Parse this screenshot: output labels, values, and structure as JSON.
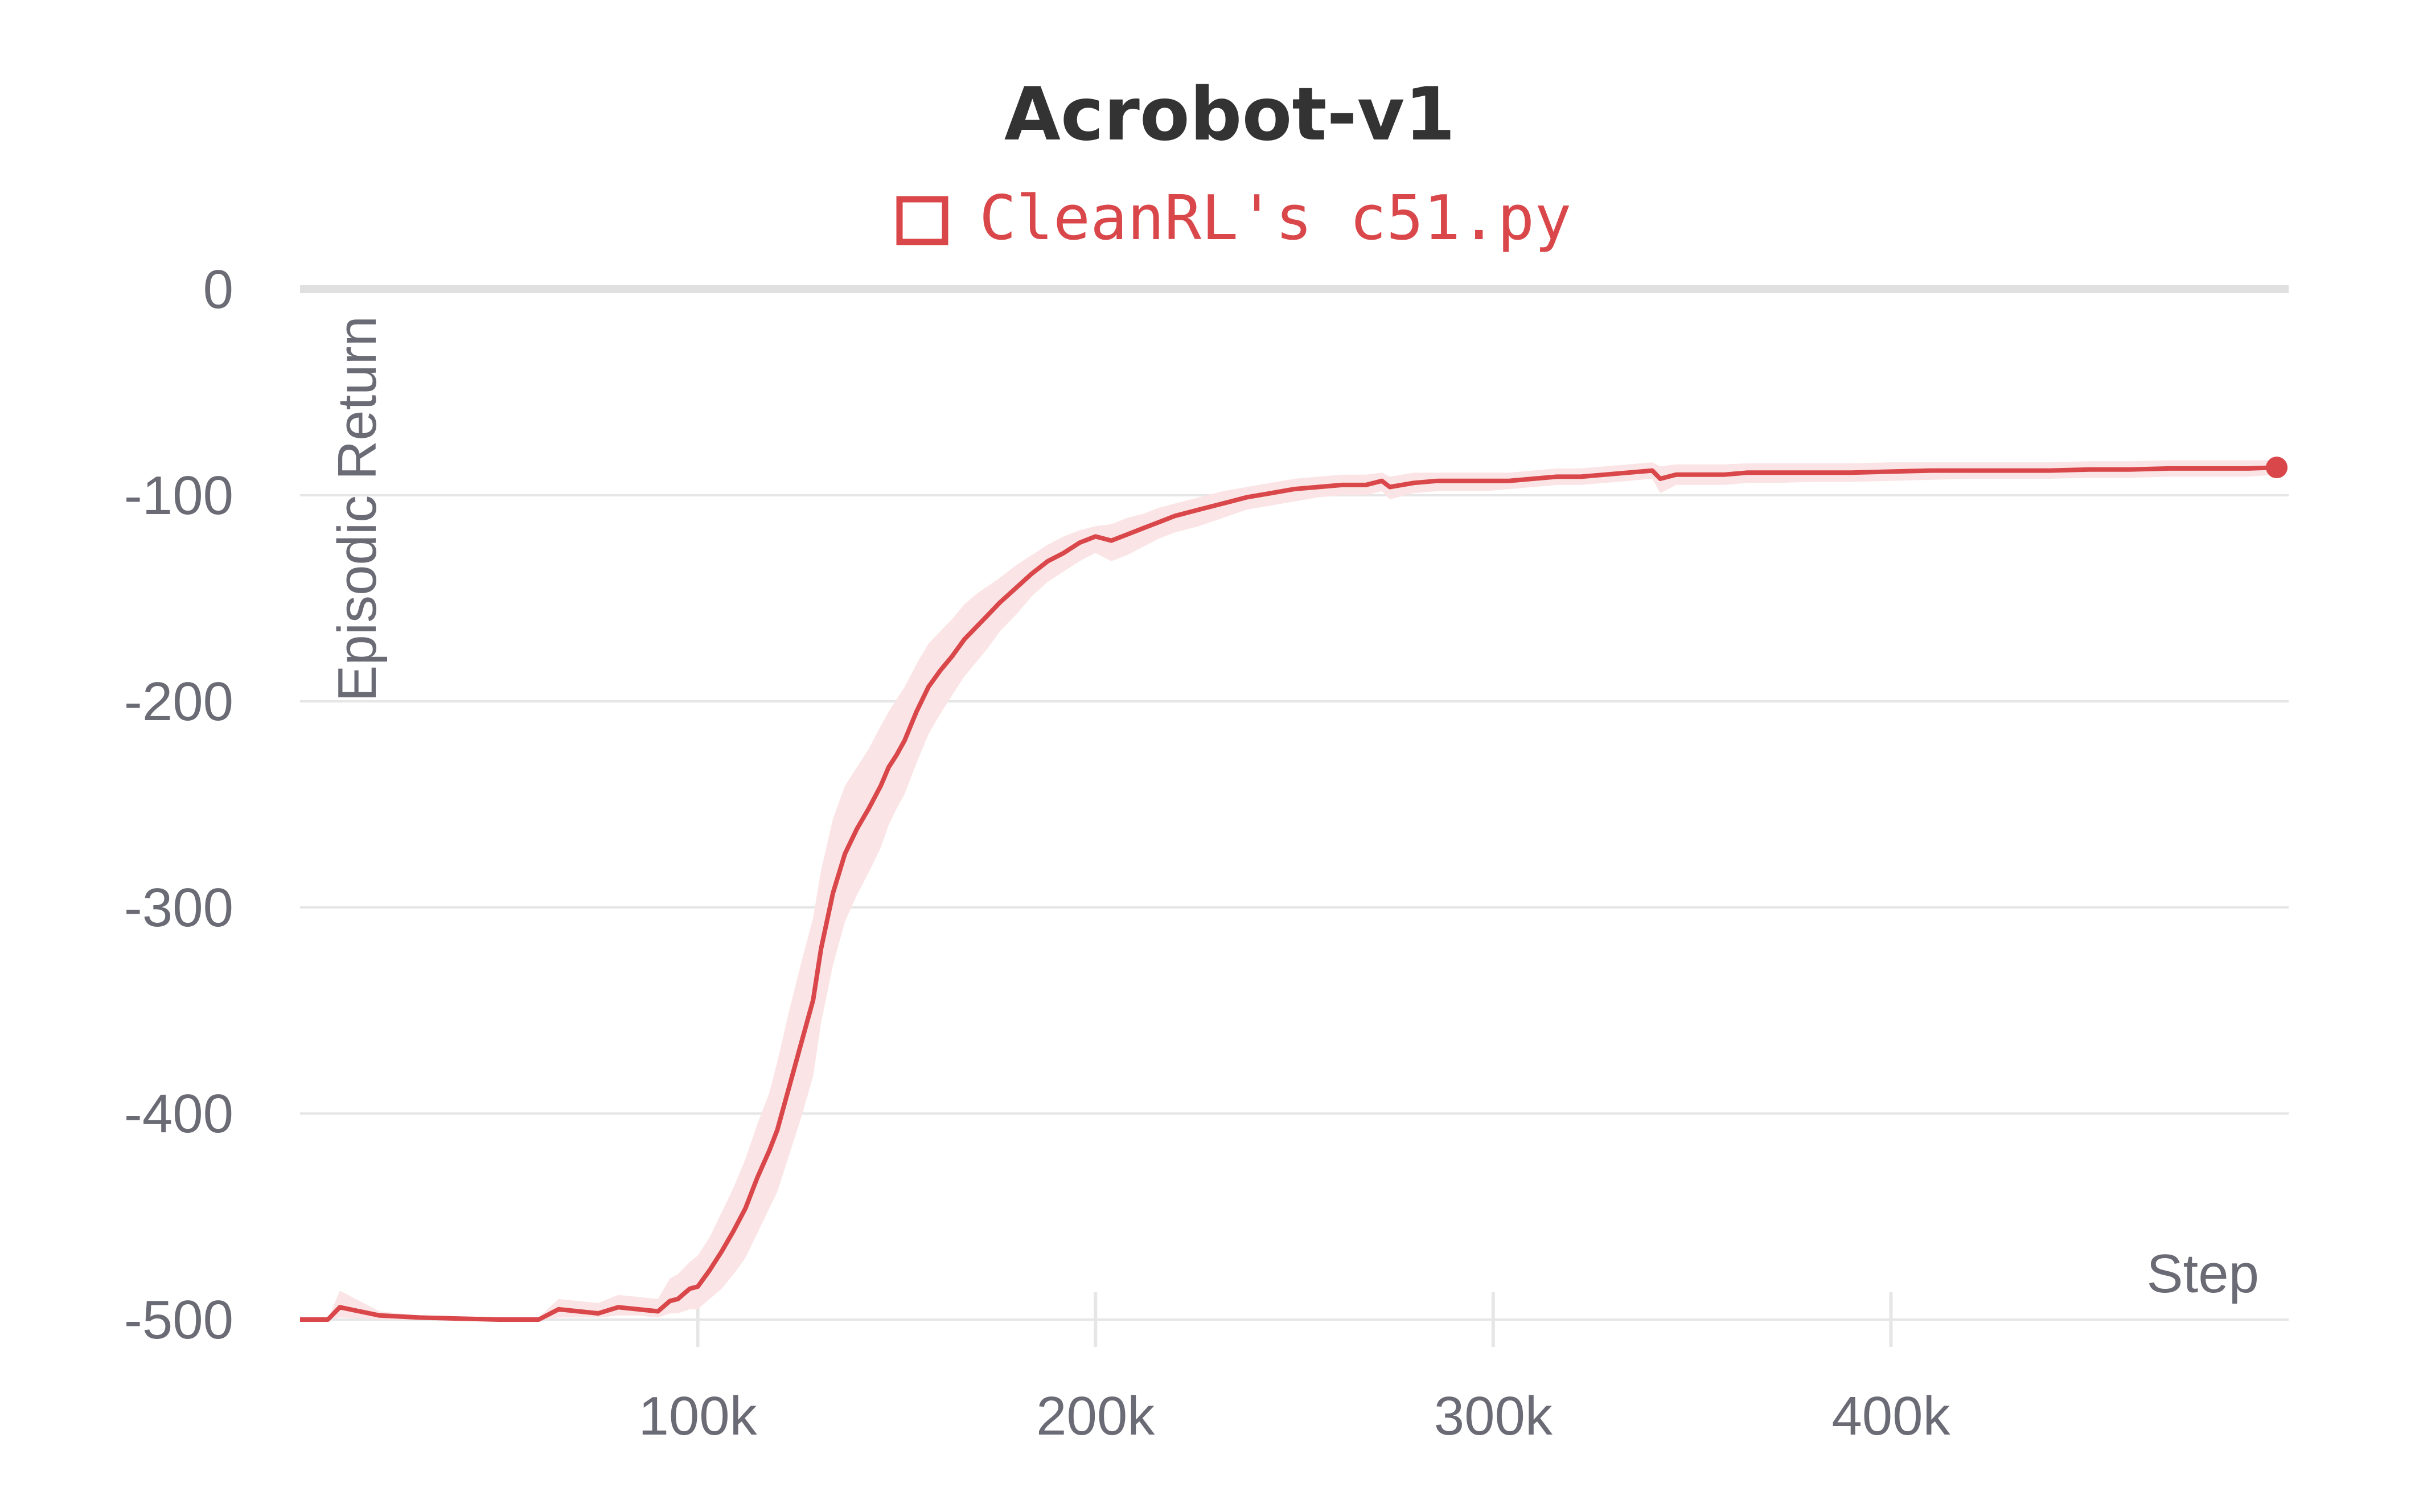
{
  "chart_data": {
    "type": "line",
    "title": "Acrobot-v1",
    "xlabel": "Step",
    "ylabel": "Episodic Return",
    "xlim": [
      0,
      500000
    ],
    "ylim": [
      -500,
      0
    ],
    "x_ticks": [
      100000,
      200000,
      300000,
      400000
    ],
    "x_tick_labels": [
      "100k",
      "200k",
      "300k",
      "400k"
    ],
    "y_ticks": [
      0,
      -100,
      -200,
      -300,
      -400,
      -500
    ],
    "y_tick_labels": [
      "0",
      "-100",
      "-200",
      "-300",
      "-400",
      "-500"
    ],
    "grid": true,
    "legend_position": "top-center",
    "colors": {
      "series": "#d9474a",
      "band": "#fbe4e5",
      "grid": "#e6e6e6",
      "zero_line": "#e0e0e0",
      "text": "#6b6b76",
      "title": "#333333"
    },
    "series": [
      {
        "name": "CleanRL's c51.py",
        "x": [
          0,
          7000,
          10000,
          20000,
          30000,
          40000,
          50000,
          60000,
          65000,
          70000,
          75000,
          80000,
          85000,
          90000,
          93000,
          95000,
          98000,
          100000,
          103000,
          106000,
          109000,
          112000,
          115000,
          118000,
          120000,
          123000,
          126000,
          129000,
          131000,
          134000,
          137000,
          140000,
          143000,
          146000,
          148000,
          150000,
          152000,
          155000,
          158000,
          161000,
          164000,
          167000,
          170000,
          173000,
          176000,
          180000,
          184000,
          188000,
          192000,
          196000,
          200000,
          204000,
          208000,
          212000,
          216000,
          220000,
          226000,
          232000,
          238000,
          244000,
          250000,
          256000,
          262000,
          268000,
          272000,
          274000,
          280000,
          286000,
          292000,
          298000,
          304000,
          310000,
          316000,
          322000,
          328000,
          334000,
          340000,
          342000,
          346000,
          352000,
          358000,
          364000,
          372000,
          380000,
          390000,
          400000,
          410000,
          420000,
          430000,
          440000,
          450000,
          460000,
          470000,
          480000,
          490000,
          497000
        ],
        "y": [
          -500,
          -500,
          -494,
          -498,
          -499,
          -499.5,
          -500,
          -500,
          -495,
          -496,
          -497,
          -494,
          -495,
          -496,
          -491,
          -490,
          -485,
          -484,
          -476,
          -467,
          -457,
          -446,
          -431,
          -418,
          -408,
          -387,
          -366,
          -345,
          -320,
          -293,
          -274,
          -262,
          -252,
          -241,
          -232,
          -226,
          -219,
          -205,
          -193,
          -185,
          -178,
          -170,
          -164,
          -158,
          -152,
          -145,
          -138,
          -132,
          -128,
          -123,
          -120,
          -122,
          -119,
          -116,
          -113,
          -110,
          -107,
          -104,
          -101,
          -99,
          -97,
          -96,
          -95,
          -95,
          -93,
          -96,
          -94,
          -93,
          -93,
          -93,
          -93,
          -92,
          -91,
          -91,
          -90,
          -89,
          -88,
          -92,
          -90,
          -90,
          -90,
          -89,
          -89,
          -89,
          -89,
          -88.5,
          -88,
          -88,
          -88,
          -88,
          -87.5,
          -87.5,
          -87,
          -87,
          -87,
          -86.5
        ],
        "band_upper": [
          -500,
          -500,
          -486,
          -496,
          -498,
          -498.5,
          -499,
          -499,
          -490,
          -491,
          -492,
          -488,
          -489,
          -490,
          -480,
          -478,
          -472,
          -469,
          -460,
          -448,
          -436,
          -422,
          -405,
          -390,
          -375,
          -350,
          -327,
          -305,
          -282,
          -257,
          -241,
          -232,
          -223,
          -212,
          -205,
          -199,
          -193,
          -182,
          -172,
          -166,
          -160,
          -153,
          -148,
          -144,
          -140,
          -134,
          -129,
          -124,
          -120,
          -117,
          -115,
          -114,
          -111,
          -109,
          -106,
          -104,
          -101,
          -98,
          -96,
          -94,
          -92,
          -91,
          -90,
          -90,
          -89,
          -91,
          -89,
          -89,
          -89,
          -89,
          -89,
          -88,
          -87,
          -87,
          -86,
          -85,
          -84,
          -86,
          -85,
          -85,
          -85,
          -84.5,
          -84.5,
          -84.5,
          -84.5,
          -84,
          -84,
          -84,
          -84,
          -84,
          -83.5,
          -83.5,
          -83,
          -83,
          -83,
          -83
        ],
        "band_lower": [
          -500,
          -500,
          -499,
          -500,
          -500,
          -500,
          -500,
          -500,
          -499,
          -499,
          -499,
          -498,
          -498,
          -499,
          -497,
          -497,
          -495,
          -495,
          -490,
          -485,
          -478,
          -470,
          -458,
          -446,
          -438,
          -420,
          -402,
          -382,
          -356,
          -328,
          -307,
          -294,
          -283,
          -271,
          -260,
          -252,
          -245,
          -230,
          -216,
          -206,
          -197,
          -188,
          -181,
          -174,
          -166,
          -158,
          -149,
          -142,
          -137,
          -132,
          -128,
          -132,
          -129,
          -125,
          -121,
          -118,
          -115,
          -111,
          -107,
          -105,
          -103,
          -101,
          -100,
          -100,
          -98,
          -102,
          -99,
          -98,
          -98,
          -98,
          -97,
          -96,
          -95,
          -95,
          -94,
          -93,
          -92,
          -99,
          -95,
          -95,
          -95,
          -94,
          -94,
          -93.5,
          -93.5,
          -93,
          -92.5,
          -92,
          -92,
          -92,
          -91.5,
          -91.5,
          -91,
          -91,
          -91,
          -90
        ]
      }
    ]
  }
}
